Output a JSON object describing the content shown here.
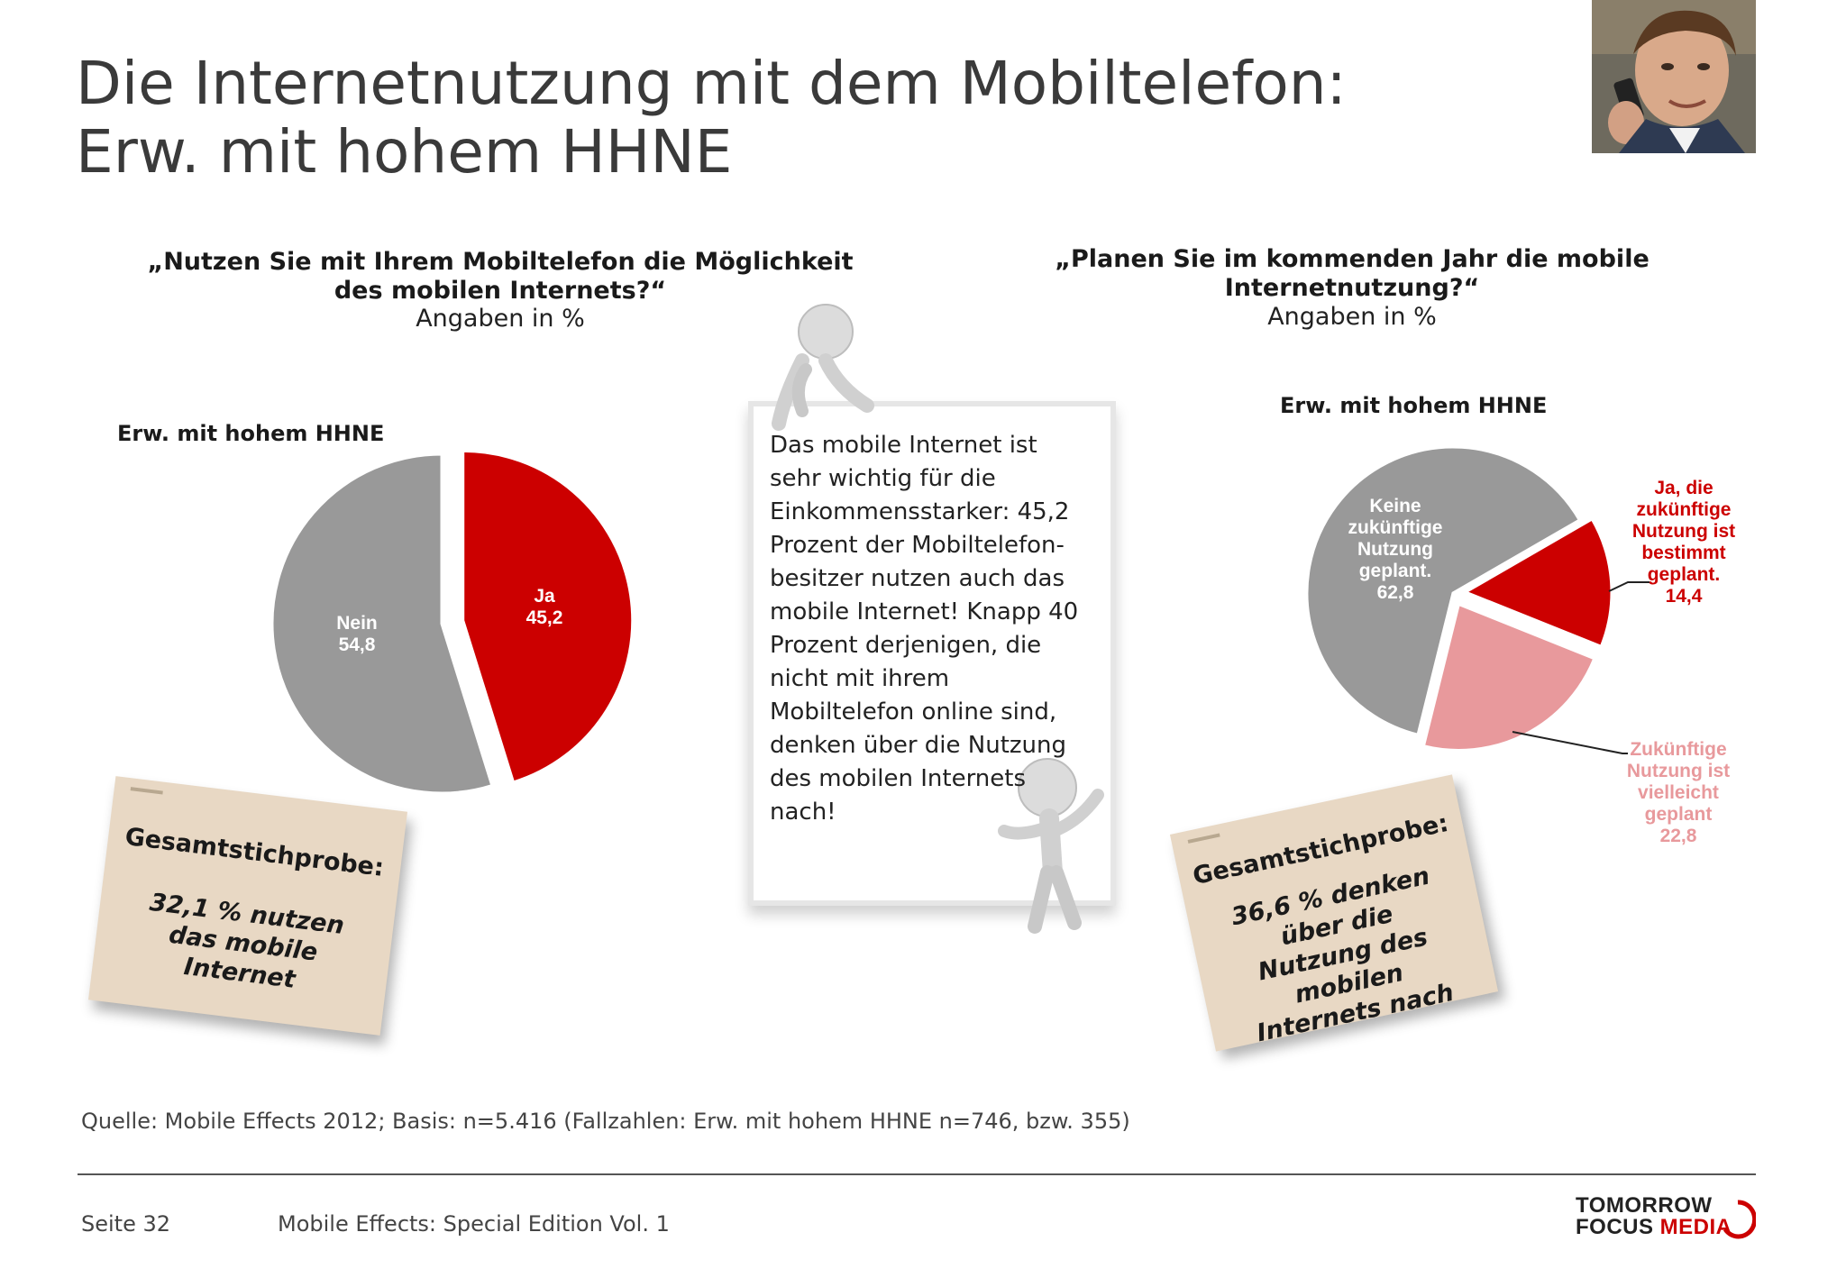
{
  "title_line1": "Die Internetnutzung mit dem Mobiltelefon:",
  "title_line2": "Erw. mit hohem HHNE",
  "left": {
    "question": "„Nutzen Sie mit Ihrem Mobiltelefon die Möglichkeit des mobilen Internets?“",
    "unit": "Angaben in %",
    "subtitle": "Erw. mit hohem HHNE",
    "card_head": "Gesamtstichprobe:",
    "card_body": "32,1 % nutzen das mobile Internet"
  },
  "right": {
    "question": "„Planen Sie im kommenden Jahr die mobile Internetnutzung?“",
    "unit": "Angaben in %",
    "subtitle": "Erw. mit hohem HHNE",
    "card_head": "Gesamtstichprobe:",
    "card_body": "36,6 % denken über die Nutzung des mobilen Internets nach"
  },
  "note": "Das mobile Internet ist sehr wichtig für die Einkommensstarker: 45,2 Prozent der Mobiltelefon-besitzer nutzen auch das mobile Internet! Knapp 40 Prozent derjenigen, die nicht mit ihrem Mobiltelefon online sind, denken über die Nutzung des mobilen Internets nach!",
  "footer": {
    "source": "Quelle: Mobile Effects 2012; Basis: n=5.416 (Fallzahlen: Erw. mit hohem HHNE n=746, bzw. 355)",
    "page": "Seite 32",
    "edition": "Mobile Effects: Special Edition Vol. 1",
    "logo_line1": "TOMORROW",
    "logo_line2": "FOCUS",
    "logo_line3": "MEDIA"
  },
  "colors": {
    "red": "#cc0000",
    "gray": "#999999",
    "pink": "#e8999c",
    "card": "#e8d8c4"
  },
  "chart_data": [
    {
      "type": "pie",
      "title": "Erw. mit hohem HHNE",
      "start_angle_deg": 0,
      "slices": [
        {
          "label": "Ja",
          "value": 45.2,
          "value_text": "45,2",
          "color": "#cc0000",
          "label_color": "#ffffff",
          "exploded": true
        },
        {
          "label": "Nein",
          "value": 54.8,
          "value_text": "54,8",
          "color": "#999999",
          "label_color": "#ffffff",
          "exploded": false
        }
      ]
    },
    {
      "type": "pie",
      "title": "Erw. mit hohem HHNE",
      "start_angle_deg": 60,
      "slices": [
        {
          "label": "Ja, die zukünftige Nutzung ist bestimmt geplant.",
          "value": 14.4,
          "value_text": "14,4",
          "color": "#cc0000",
          "label_color": "#cc0000",
          "exploded": true,
          "outside": true
        },
        {
          "label": "Zukünftige Nutzung ist vielleicht geplant",
          "value": 22.8,
          "value_text": "22,8",
          "color": "#e8999c",
          "label_color": "#e8999c",
          "exploded": true,
          "outside": true
        },
        {
          "label": "Keine zukünftige Nutzung geplant.",
          "value": 62.8,
          "value_text": "62,8",
          "color": "#999999",
          "label_color": "#ffffff",
          "exploded": false,
          "outside": false
        }
      ]
    }
  ]
}
